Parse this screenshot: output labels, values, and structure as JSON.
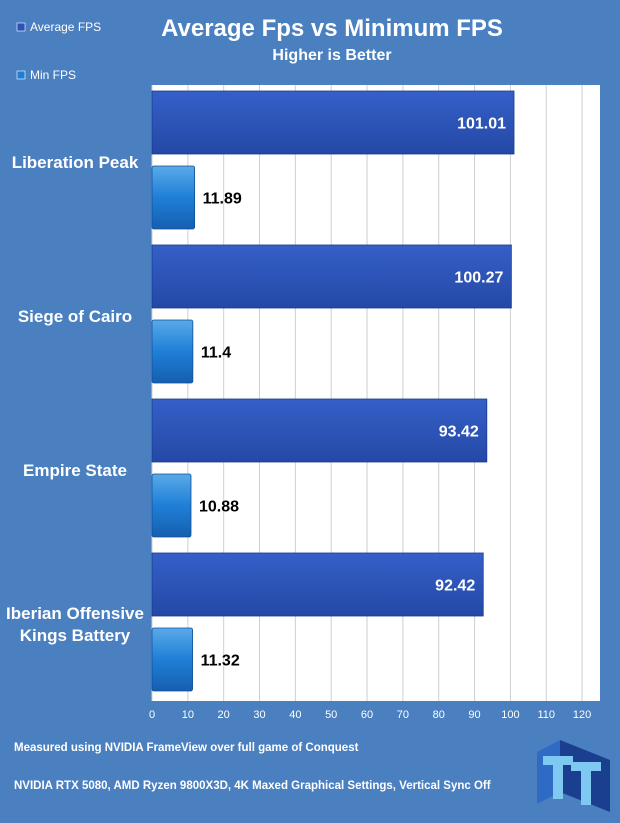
{
  "chart_data": {
    "type": "bar",
    "orientation": "horizontal",
    "title": "Average Fps vs Minimum FPS",
    "subtitle": "Higher is Better",
    "categories": [
      "Liberation Peak",
      "Siege of Cairo",
      "Empire State",
      "Iberian Offensive Kings Battery"
    ],
    "category_lines": [
      [
        "Liberation Peak"
      ],
      [
        "Siege of Cairo"
      ],
      [
        "Empire State"
      ],
      [
        "Iberian Offensive",
        "Kings Battery"
      ]
    ],
    "series": [
      {
        "name": "Average FPS",
        "values": [
          101.01,
          100.27,
          93.42,
          92.42
        ],
        "color": "#2a52b8",
        "label_color": "#ffffff"
      },
      {
        "name": "Min FPS",
        "values": [
          11.89,
          11.4,
          10.88,
          11.32
        ],
        "color": "#1f7fd6",
        "label_color": "#000000"
      }
    ],
    "value_labels": {
      "Average FPS": [
        "101.01",
        "100.27",
        "93.42",
        "92.42"
      ],
      "Min FPS": [
        "11.89",
        "11.4",
        "10.88",
        "11.32"
      ]
    },
    "xlim": [
      0,
      125
    ],
    "xticks": [
      0,
      10,
      20,
      30,
      40,
      50,
      60,
      70,
      80,
      90,
      100,
      110,
      120
    ],
    "grid": true,
    "legend": "top-left",
    "xlabel": "",
    "ylabel": ""
  },
  "footnotes": {
    "line1": "Measured using NVIDIA FrameView over full game of Conquest",
    "line2": "NVIDIA RTX 5080, AMD Ryzen 9800X3D, 4K Maxed Graphical Settings, Vertical Sync Off"
  },
  "logo": {
    "text": "TT"
  },
  "colors": {
    "background": "#4a7fc0",
    "plot_background": "#ffffff",
    "grid": "#cfcfcf",
    "logo_light": "#7ec8f2",
    "logo_dark": "#1a3f8e"
  }
}
